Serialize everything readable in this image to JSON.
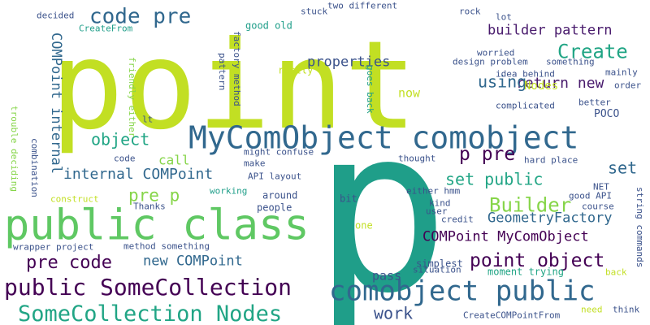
{
  "palette": {
    "yellow_green": "#c2df23",
    "green": "#5fc863",
    "light_green": "#86d549",
    "teal": "#21a585",
    "cyan_teal": "#1f9e89",
    "blue": "#31688e",
    "slate": "#3b528b",
    "indigo": "#443983",
    "purple": "#440154",
    "dark_purple": "#481a6c"
  },
  "words": [
    {
      "text": "point"
    },
    {
      "text": "p"
    },
    {
      "text": "public class"
    },
    {
      "text": "MyComObject comobject"
    },
    {
      "text": "comobject public"
    },
    {
      "text": "public SomeCollection"
    },
    {
      "text": "SomeCollection Nodes"
    },
    {
      "text": "code pre"
    },
    {
      "text": "Create"
    },
    {
      "text": "return new"
    },
    {
      "text": "builder pattern"
    },
    {
      "text": "properties"
    },
    {
      "text": "using"
    },
    {
      "text": "Nodes"
    },
    {
      "text": "object"
    },
    {
      "text": "internal COMPoint"
    },
    {
      "text": "COMPoint internal"
    },
    {
      "text": "pre p"
    },
    {
      "text": "p pre"
    },
    {
      "text": "set public"
    },
    {
      "text": "set"
    },
    {
      "text": "Builder"
    },
    {
      "text": "GeometryFactory"
    },
    {
      "text": "COMPoint MyComObject"
    },
    {
      "text": "point object"
    },
    {
      "text": "pre code"
    },
    {
      "text": "new COMPoint"
    },
    {
      "text": "work"
    },
    {
      "text": "now"
    },
    {
      "text": "call"
    },
    {
      "text": "pass"
    },
    {
      "text": "decided"
    },
    {
      "text": "CreateFrom"
    },
    {
      "text": "good old"
    },
    {
      "text": "stuck"
    },
    {
      "text": "two different"
    },
    {
      "text": "rock"
    },
    {
      "text": "lot"
    },
    {
      "text": "factory method"
    },
    {
      "text": "pattern"
    },
    {
      "text": "friendly either"
    },
    {
      "text": "really"
    },
    {
      "text": "goes back"
    },
    {
      "text": "design problem"
    },
    {
      "text": "worried"
    },
    {
      "text": "idea behind"
    },
    {
      "text": "something"
    },
    {
      "text": "mainly"
    },
    {
      "text": "order"
    },
    {
      "text": "better"
    },
    {
      "text": "complicated"
    },
    {
      "text": "POCO"
    },
    {
      "text": "lt"
    },
    {
      "text": "code"
    },
    {
      "text": "might confuse"
    },
    {
      "text": "thought"
    },
    {
      "text": "hard place"
    },
    {
      "text": "make"
    },
    {
      "text": "API layout"
    },
    {
      "text": "trouble deciding"
    },
    {
      "text": "combination"
    },
    {
      "text": "construct"
    },
    {
      "text": "working"
    },
    {
      "text": "around"
    },
    {
      "text": "bit"
    },
    {
      "text": "either hmm"
    },
    {
      "text": "kind"
    },
    {
      "text": "NET"
    },
    {
      "text": "good API"
    },
    {
      "text": "course"
    },
    {
      "text": "Thanks"
    },
    {
      "text": "people"
    },
    {
      "text": "one"
    },
    {
      "text": "user"
    },
    {
      "text": "credit"
    },
    {
      "text": "string commands"
    },
    {
      "text": "wrapper project"
    },
    {
      "text": "method something"
    },
    {
      "text": "situation"
    },
    {
      "text": "simplest"
    },
    {
      "text": "moment trying"
    },
    {
      "text": "back"
    },
    {
      "text": "CreateCOMPointFrom"
    },
    {
      "text": "need"
    },
    {
      "text": "think"
    }
  ]
}
